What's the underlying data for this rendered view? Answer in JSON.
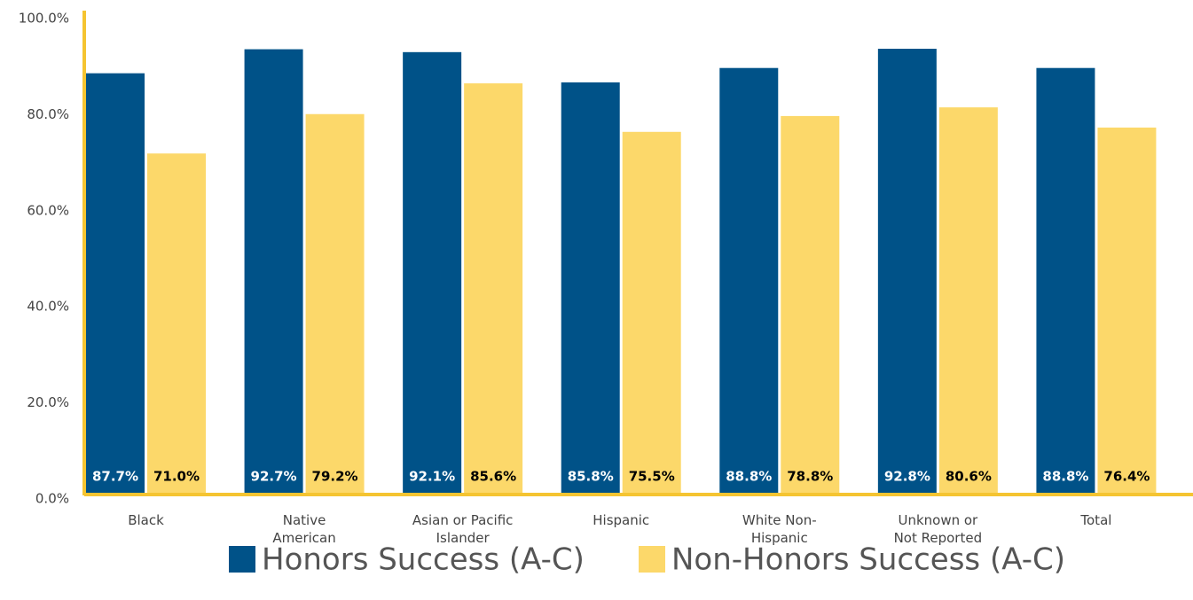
{
  "chart_data": {
    "type": "bar",
    "categories": [
      "Black",
      "Native\nAmerican",
      "Asian or Pacific\nIslander",
      "Hispanic",
      "White Non-\nHispanic",
      "Unknown or\nNot Reported",
      "Total"
    ],
    "series": [
      {
        "name": "Honors Success (A-C)",
        "color": "#005288",
        "values": [
          87.7,
          92.7,
          92.1,
          85.8,
          88.8,
          92.8,
          88.8
        ],
        "value_labels": [
          "87.7%",
          "92.7%",
          "92.1%",
          "85.8%",
          "88.8%",
          "92.8%",
          "88.8%"
        ]
      },
      {
        "name": "Non-Honors Success (A-C)",
        "color": "#fcd86a",
        "values": [
          71.0,
          79.2,
          85.6,
          75.5,
          78.8,
          80.6,
          76.4
        ],
        "value_labels": [
          "71.0%",
          "79.2%",
          "85.6%",
          "75.5%",
          "78.8%",
          "80.6%",
          "76.4%"
        ]
      }
    ],
    "ylim": [
      0,
      100
    ],
    "yticks": [
      {
        "value": 0,
        "label": "0.0%"
      },
      {
        "value": 20,
        "label": "20.0%"
      },
      {
        "value": 40,
        "label": "40.0%"
      },
      {
        "value": 60,
        "label": "60.0%"
      },
      {
        "value": 80,
        "label": "80.0%"
      },
      {
        "value": 100,
        "label": "100.0%"
      }
    ],
    "axis_color": "#f5c431",
    "legend": "bottom"
  }
}
